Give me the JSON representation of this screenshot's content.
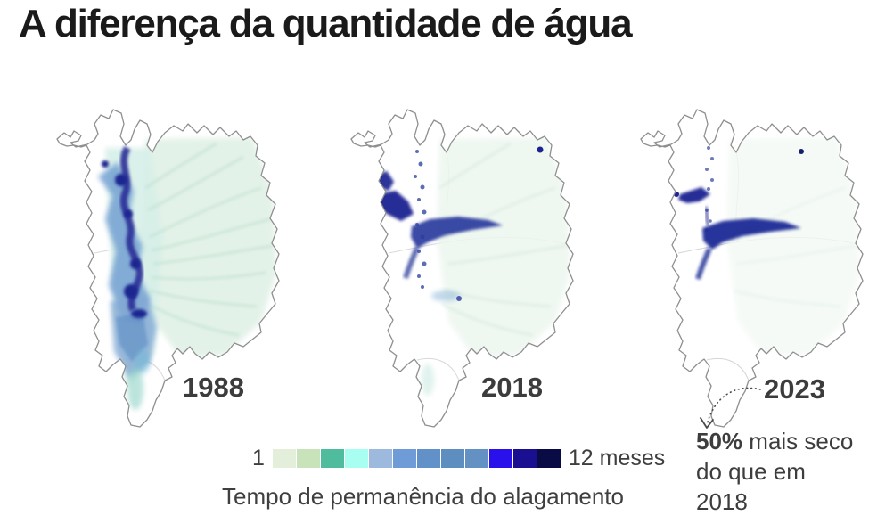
{
  "title": "A diferença da quantidade de água",
  "maps": [
    {
      "year": "1988"
    },
    {
      "year": "2018"
    },
    {
      "year": "2023"
    }
  ],
  "legend": {
    "min_label": "1",
    "max_label": "12 meses",
    "caption": "Tempo de permanência do alagamento",
    "scale_colors": [
      "#e4efdb",
      "#c8e3b9",
      "#4fbc9e",
      "#a9fef2",
      "#9db9de",
      "#6f9cd6",
      "#6290c8",
      "#5e8dc0",
      "#6391c4",
      "#2a10ea",
      "#190f90",
      "#0a0a45"
    ]
  },
  "annotation": {
    "highlight": "50%",
    "rest": "mais seco do que em 2018"
  },
  "chart_data": {
    "type": "heatmap",
    "title": "A diferença da quantidade de água",
    "categories": [
      "1988",
      "2018",
      "2023"
    ],
    "legend": {
      "min": 1,
      "max": 12,
      "unit": "meses",
      "label": "Tempo de permanência do alagamento"
    },
    "scale_colors": [
      "#e4efdb",
      "#c8e3b9",
      "#4fbc9e",
      "#a9fef2",
      "#9db9de",
      "#6f9cd6",
      "#6290c8",
      "#5e8dc0",
      "#6391c4",
      "#2a10ea",
      "#190f90",
      "#0a0a45"
    ],
    "annotations": [
      {
        "target": "2023",
        "text": "50% mais seco do que em 2018"
      }
    ]
  },
  "style_colors": {
    "flood_dark_blue": "#1b2a96",
    "flood_medium_blue": "#6d9bd0",
    "flood_pale_green": "#dcefe2",
    "map_outline_gray": "#8f8f8f",
    "text_dark": "#3d3d3d"
  }
}
